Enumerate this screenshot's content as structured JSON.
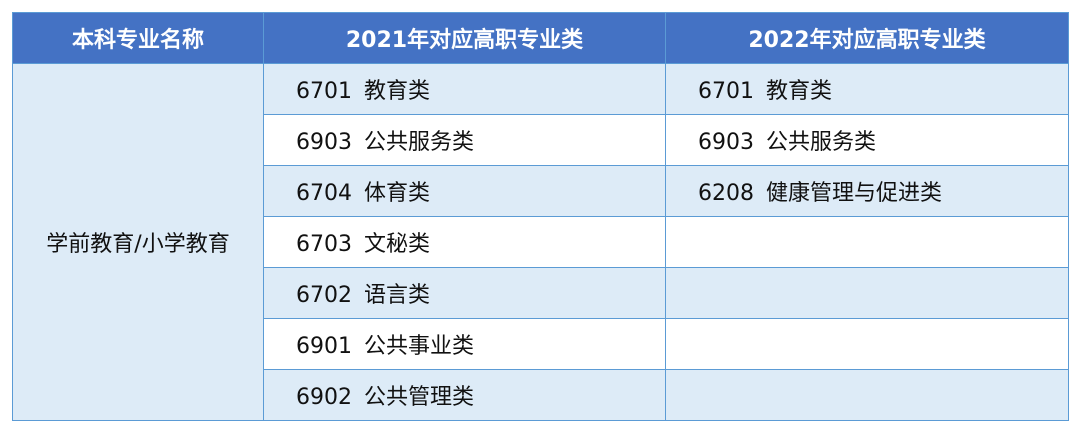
{
  "headers": [
    "本科专业名称",
    "2021年对应高职专业类",
    "2022年对应高职专业类"
  ],
  "major": "学前教育/小学教育",
  "rows": [
    {
      "y2021": {
        "code": "6701",
        "name": "教育类"
      },
      "y2022": {
        "code": "6701",
        "name": "教育类"
      }
    },
    {
      "y2021": {
        "code": "6903",
        "name": "公共服务类"
      },
      "y2022": {
        "code": "6903",
        "name": "公共服务类"
      }
    },
    {
      "y2021": {
        "code": "6704",
        "name": "体育类"
      },
      "y2022": {
        "code": "6208",
        "name": "健康管理与促进类"
      }
    },
    {
      "y2021": {
        "code": "6703",
        "name": "文秘类"
      },
      "y2022": null
    },
    {
      "y2021": {
        "code": "6702",
        "name": "语言类"
      },
      "y2022": null
    },
    {
      "y2021": {
        "code": "6901",
        "name": "公共事业类"
      },
      "y2022": null
    },
    {
      "y2021": {
        "code": "6902",
        "name": "公共管理类"
      },
      "y2022": null
    }
  ],
  "colors": {
    "header_bg": "#4472c4",
    "band": "#ddebf7",
    "border": "#5b9bd5"
  }
}
